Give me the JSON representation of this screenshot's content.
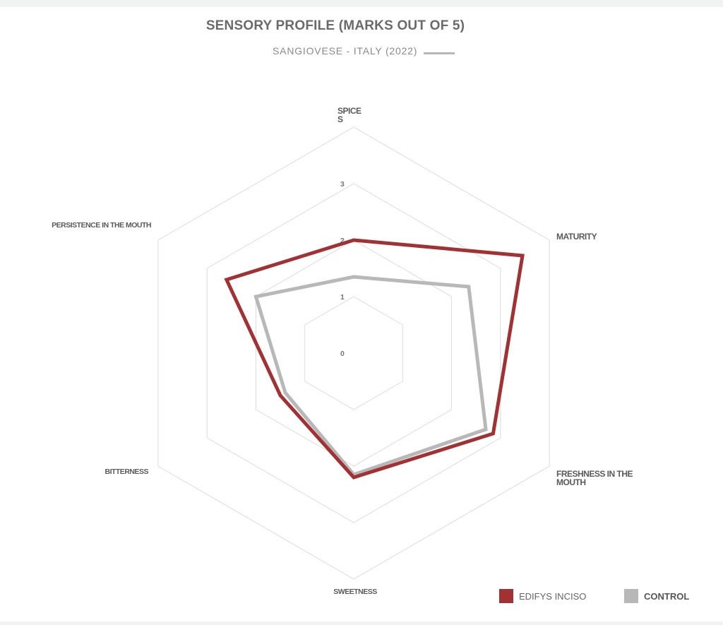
{
  "chart_data": {
    "type": "radar",
    "title": "SENSORY PROFILE (MARKS OUT OF 5)",
    "subtitle": "SANGIOVESE - ITALY (2022)",
    "axes": [
      [
        "SPICE",
        "S"
      ],
      [
        "MATURITY"
      ],
      [
        "FRESHNESS IN THE",
        "MOUTH"
      ],
      [
        "SWEETNESS"
      ],
      [
        "BITTERNESS"
      ],
      [
        "PERSISTENCE IN THE MOUTH"
      ]
    ],
    "tick_labels": [
      "0",
      "1",
      "2",
      "3"
    ],
    "range": [
      0,
      4
    ],
    "series": [
      {
        "name": "EDIFYS INCISO",
        "color": "#a23133",
        "values": [
          2.0,
          3.45,
          2.85,
          2.2,
          1.5,
          2.6
        ]
      },
      {
        "name": "CONTROL",
        "color": "#b8b8b8",
        "values": [
          1.35,
          2.35,
          2.7,
          2.15,
          1.4,
          2.0
        ]
      }
    ],
    "legend": "bottom-right",
    "grid": true
  }
}
